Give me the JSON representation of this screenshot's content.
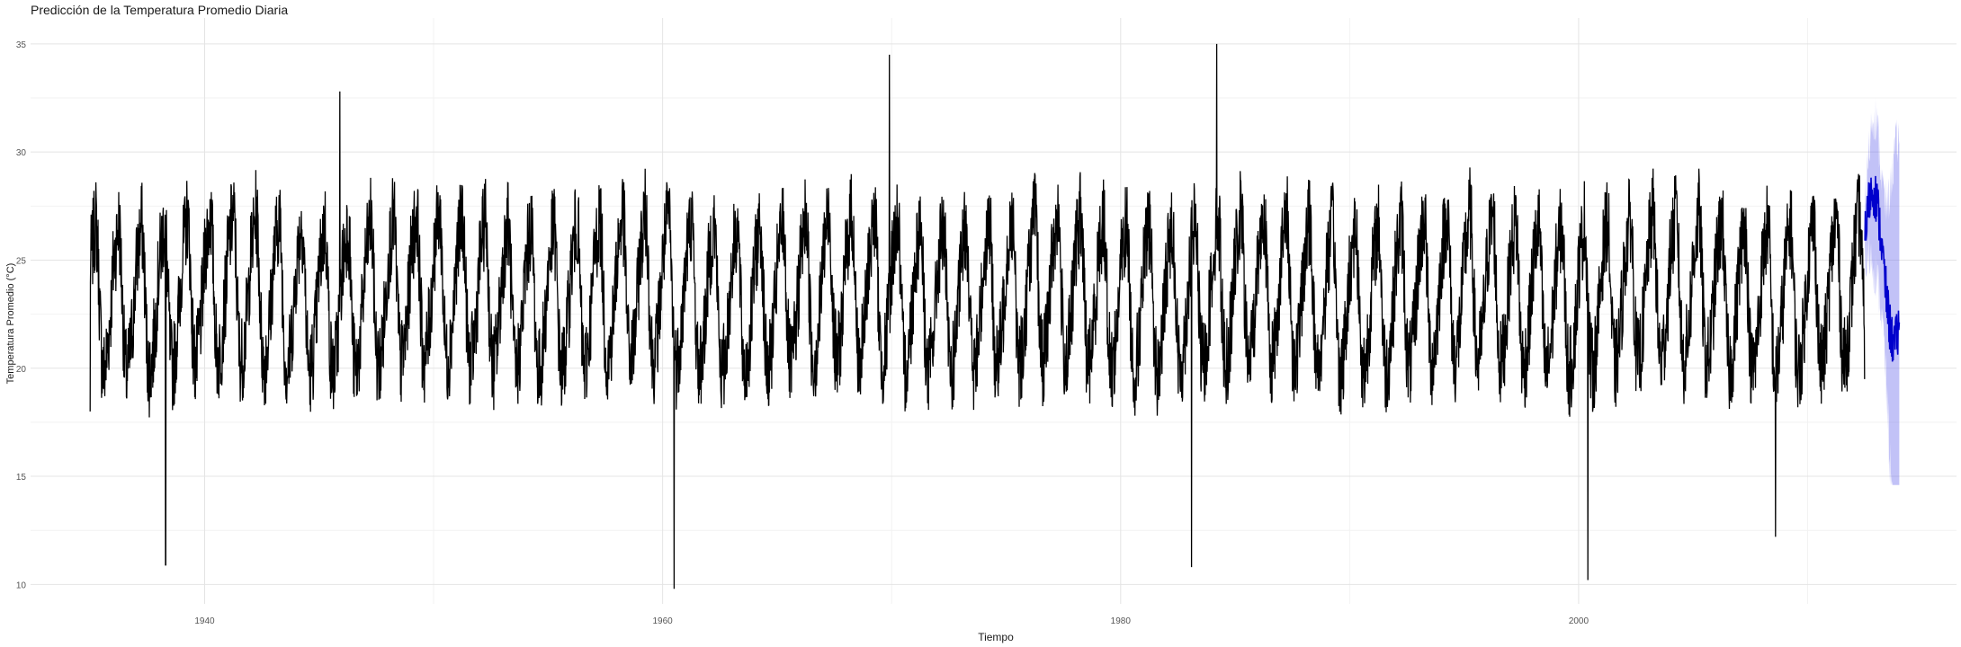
{
  "chart_data": {
    "type": "line",
    "title": "Predicción de la Temperatura Promedio Diaria",
    "xlabel": "Tiempo",
    "ylabel": "Temperatura Promedio (°C)",
    "xlim": [
      1932.4,
      2016.5
    ],
    "ylim": [
      9.1,
      36.2
    ],
    "x_ticks": [
      1940,
      1960,
      1980,
      2000
    ],
    "y_ticks": [
      10,
      15,
      20,
      25,
      30,
      35
    ],
    "grid": true,
    "series": [
      {
        "role": "observed",
        "color": "#000000",
        "x_start": 1935.0,
        "x_end": 2012.5,
        "seasonal_mean": [
          24.8,
          25.6,
          26.3,
          27.0,
          25.9,
          23.0,
          20.8,
          20.0,
          20.3,
          21.0,
          22.1,
          23.2
        ],
        "highlights": [
          {
            "x": 1935.0,
            "y": 18.0
          },
          {
            "x": 1938.3,
            "y": 10.9
          },
          {
            "x": 1945.9,
            "y": 32.8
          },
          {
            "x": 1960.5,
            "y": 9.8
          },
          {
            "x": 1969.9,
            "y": 34.5
          },
          {
            "x": 1983.1,
            "y": 10.8
          },
          {
            "x": 1984.2,
            "y": 35.0
          },
          {
            "x": 2000.4,
            "y": 10.2
          },
          {
            "x": 2008.6,
            "y": 12.2
          }
        ]
      },
      {
        "role": "forecast",
        "color": "#0000cc",
        "band_color": "#7777ee",
        "x_start": 2012.5,
        "x_end": 2014.0,
        "y_range": [
          20.0,
          29.4
        ],
        "band_range": [
          14.6,
          34.4
        ]
      }
    ]
  }
}
